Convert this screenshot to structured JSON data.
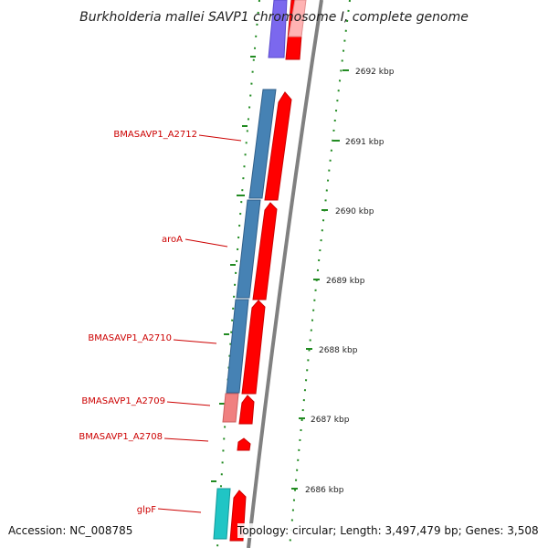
{
  "title": "Burkholderia mallei SAVP1 chromosome I, complete genome",
  "footer": {
    "accession": "Accession: NC_008785",
    "summary": "Topology: circular; Length: 3,497,479 bp; Genes: 3,508"
  },
  "ruler_labels": [
    "2692 kbp",
    "2691 kbp",
    "2690 kbp",
    "2689 kbp",
    "2688 kbp",
    "2687 kbp",
    "2686 kbp"
  ],
  "gene_labels": [
    "BMASAVP1_A2712",
    "aroA",
    "BMASAVP1_A2710",
    "BMASAVP1_A2709",
    "BMASAVP1_A2708",
    "glpF"
  ],
  "colors": {
    "backbone": "#808080",
    "tick": "#228b22",
    "label": "#cc0000",
    "cds_forward": "#ff0000",
    "cds_forward_light": "#ffb3b3",
    "gene_blue": "#4682b4",
    "gene_purple": "#7b68ee",
    "gene_pink": "#f08080",
    "gene_cyan": "#20c5c5"
  }
}
